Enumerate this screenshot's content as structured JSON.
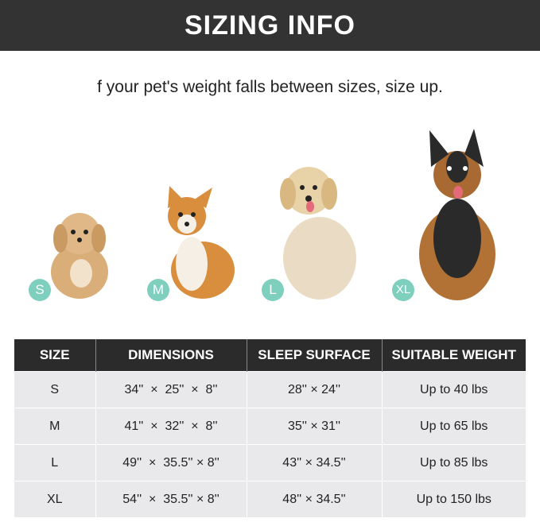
{
  "header": {
    "title": "SIZING INFO"
  },
  "subtitle": "f your pet's weight falls between sizes, size up.",
  "badge_color": "#7ecfbd",
  "dogs": [
    {
      "size": "S",
      "breed_icon": "poodle-mix-dog"
    },
    {
      "size": "M",
      "breed_icon": "corgi-dog"
    },
    {
      "size": "L",
      "breed_icon": "golden-retriever-dog"
    },
    {
      "size": "XL",
      "breed_icon": "german-shepherd-dog"
    }
  ],
  "table": {
    "headers": [
      "SIZE",
      "DIMENSIONS",
      "SLEEP SURFACE",
      "SUITABLE WEIGHT"
    ],
    "rows": [
      [
        "S",
        "34''  ×  25''  ×  8''",
        "28'' × 24''",
        "Up to 40 lbs"
      ],
      [
        "M",
        "41''  ×  32''  ×  8''",
        "35'' × 31''",
        "Up to 65 lbs"
      ],
      [
        "L",
        "49''  ×  35.5'' × 8''",
        "43'' × 34.5''",
        "Up to 85 lbs"
      ],
      [
        "XL",
        "54''  ×  35.5'' × 8''",
        "48'' × 34.5''",
        "Up to 150 lbs"
      ]
    ]
  }
}
